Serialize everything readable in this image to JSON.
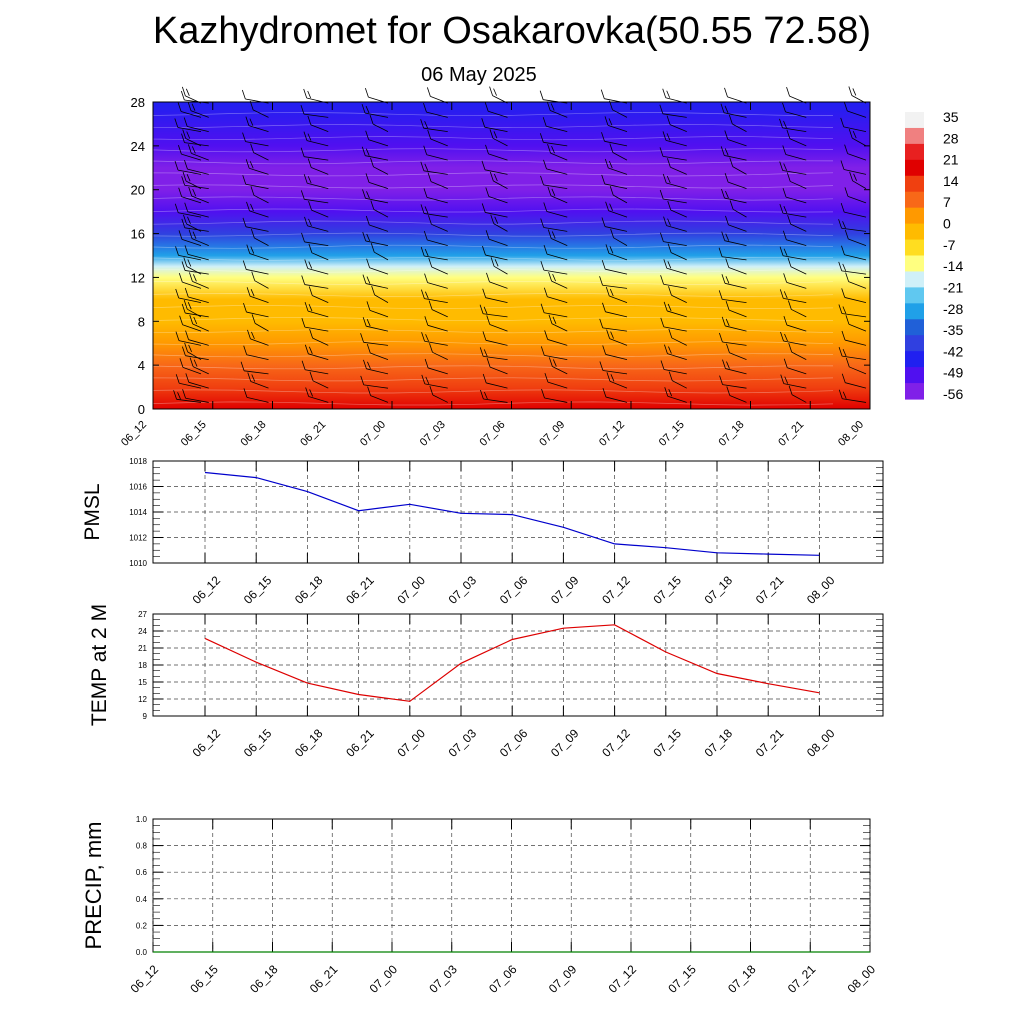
{
  "title": "Kazhydromet for Osakarovka(50.55 72.58)",
  "subtitle": "06 May 2025",
  "chart_data": [
    {
      "type": "heatmap",
      "name": "cross-section",
      "y_ticks": [
        "0",
        "4",
        "8",
        "12",
        "16",
        "20",
        "24",
        "28"
      ],
      "ylim": [
        0,
        28
      ],
      "x_ticks": [
        "06_12",
        "06_15",
        "06_18",
        "06_21",
        "07_00",
        "07_03",
        "07_06",
        "07_09",
        "07_12",
        "07_15",
        "07_18",
        "07_21",
        "08_00"
      ],
      "colorbar": {
        "labels": [
          "35",
          "28",
          "21",
          "14",
          "7",
          "0",
          "-7",
          "-14",
          "-21",
          "-28",
          "-35",
          "-42",
          "-49",
          "-56"
        ],
        "colors": [
          "#f2f2f2",
          "#f08080",
          "#e82020",
          "#e00000",
          "#f04010",
          "#f86818",
          "#ff9900",
          "#ffbb00",
          "#ffdd20",
          "#ffff80",
          "#d0f0f8",
          "#60c8f0",
          "#20a0e8",
          "#2060d8",
          "#3040e0",
          "#2020f0",
          "#5010f0",
          "#8020e8"
        ]
      },
      "temperature_profile": [
        {
          "level": 0,
          "value": 21
        },
        {
          "level": 2,
          "value": 16
        },
        {
          "level": 4,
          "value": 9
        },
        {
          "level": 6,
          "value": 4
        },
        {
          "level": 8,
          "value": 0
        },
        {
          "level": 10,
          "value": -5
        },
        {
          "level": 12,
          "value": -12
        },
        {
          "level": 13,
          "value": -21
        },
        {
          "level": 14,
          "value": -30
        },
        {
          "level": 16,
          "value": -40
        },
        {
          "level": 18,
          "value": -52
        },
        {
          "level": 20,
          "value": -56
        },
        {
          "level": 22,
          "value": -56
        },
        {
          "level": 24,
          "value": -50
        },
        {
          "level": 28,
          "value": -44
        }
      ],
      "wind_barbs": "black barbs at each time step and level"
    },
    {
      "type": "line",
      "name": "pmsl",
      "ylabel": "PMSL",
      "x": [
        "06_12",
        "06_15",
        "06_18",
        "06_21",
        "07_00",
        "07_03",
        "07_06",
        "07_09",
        "07_12",
        "07_15",
        "07_18",
        "07_21",
        "08_00"
      ],
      "y_ticks": [
        "1010",
        "1012",
        "1014",
        "1016",
        "1018"
      ],
      "ylim": [
        1010,
        1018
      ],
      "grid": true,
      "series": [
        {
          "color": "#0000cc",
          "values": [
            1017.1,
            1016.7,
            1015.6,
            1014.1,
            1014.6,
            1013.9,
            1013.8,
            1012.8,
            1011.5,
            1011.2,
            1010.8,
            1010.7,
            1010.6
          ]
        }
      ]
    },
    {
      "type": "line",
      "name": "temp2m",
      "ylabel": "TEMP at 2 M",
      "x": [
        "06_12",
        "06_15",
        "06_18",
        "06_21",
        "07_00",
        "07_03",
        "07_06",
        "07_09",
        "07_12",
        "07_15",
        "07_18",
        "07_21",
        "08_00"
      ],
      "y_ticks": [
        "9",
        "12",
        "15",
        "18",
        "21",
        "24",
        "27"
      ],
      "ylim": [
        9,
        27
      ],
      "grid": true,
      "series": [
        {
          "color": "#dd0000",
          "values": [
            22.7,
            18.5,
            14.8,
            12.8,
            11.6,
            18.3,
            22.5,
            24.5,
            25.1,
            20.3,
            16.5,
            14.7,
            13.1
          ]
        }
      ]
    },
    {
      "type": "line",
      "name": "precip",
      "ylabel": "PRECIP, mm",
      "x": [
        "06_12",
        "06_15",
        "06_18",
        "06_21",
        "07_00",
        "07_03",
        "07_06",
        "07_09",
        "07_12",
        "07_15",
        "07_18",
        "07_21",
        "08_00"
      ],
      "y_ticks": [
        "0.0",
        "0.2",
        "0.4",
        "0.6",
        "0.8",
        "1.0"
      ],
      "ylim": [
        0,
        1
      ],
      "grid": true,
      "series": [
        {
          "color": "#008000",
          "values": [
            0,
            0,
            0,
            0,
            0,
            0,
            0,
            0,
            0,
            0,
            0,
            0,
            0
          ]
        }
      ]
    }
  ]
}
